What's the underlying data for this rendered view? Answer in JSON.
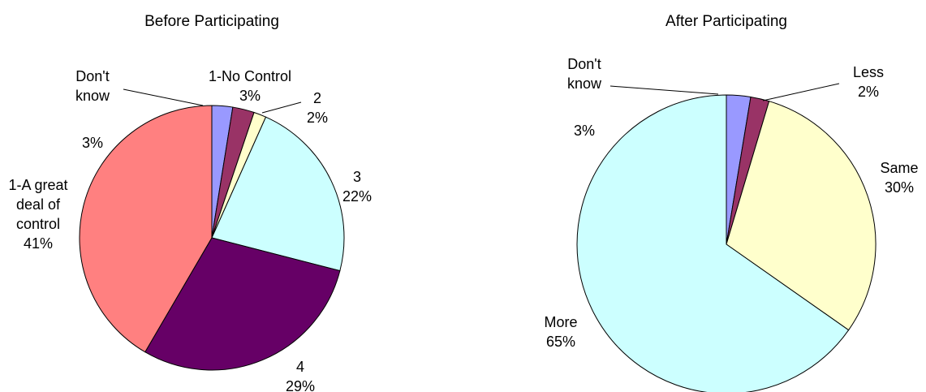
{
  "chart_data": [
    {
      "type": "pie",
      "title": "Before Participating",
      "slices": [
        {
          "label_lines": [
            "Don't",
            "know"
          ],
          "pct_text": "3%",
          "value": 2.5,
          "color": "#9999ff"
        },
        {
          "label_lines": [
            "1-No Control"
          ],
          "pct_text": "3%",
          "value": 2.6,
          "color": "#993366"
        },
        {
          "label_lines": [
            "2"
          ],
          "pct_text": "2%",
          "value": 1.5,
          "color": "#ffffcc"
        },
        {
          "label_lines": [
            "3"
          ],
          "pct_text": "22%",
          "value": 22,
          "color": "#ccffff"
        },
        {
          "label_lines": [
            "4"
          ],
          "pct_text": "29%",
          "value": 29,
          "color": "#660066"
        },
        {
          "label_lines": [
            "1-A great",
            "deal of",
            "control"
          ],
          "pct_text": "41%",
          "value": 41,
          "color": "#ff8080"
        }
      ]
    },
    {
      "type": "pie",
      "title": "After Participating",
      "slices": [
        {
          "label_lines": [
            "Don't",
            "know"
          ],
          "pct_text": "3%",
          "value": 2.6,
          "color": "#9999ff"
        },
        {
          "label_lines": [
            "Less"
          ],
          "pct_text": "2%",
          "value": 2.0,
          "color": "#993366"
        },
        {
          "label_lines": [
            "Same"
          ],
          "pct_text": "30%",
          "value": 30,
          "color": "#ffffcc"
        },
        {
          "label_lines": [
            "More"
          ],
          "pct_text": "65%",
          "value": 65,
          "color": "#ccffff"
        }
      ]
    }
  ]
}
